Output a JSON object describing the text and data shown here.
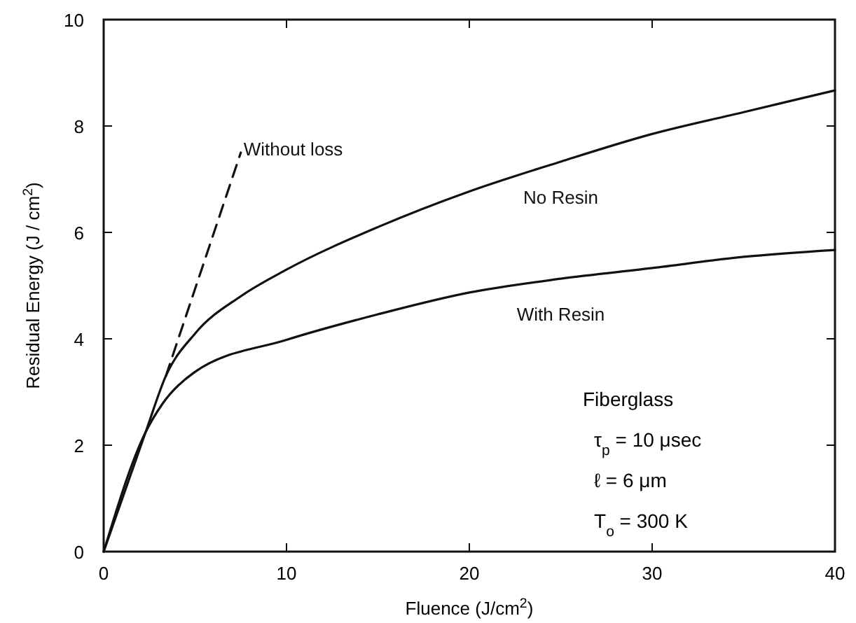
{
  "chart_data": {
    "type": "line",
    "xlabel": "Fluence (J/cm$^{2}$)",
    "ylabel": "Residual Energy (J / cm$^{2}$)",
    "xlim": [
      0,
      40
    ],
    "ylim": [
      0,
      10
    ],
    "xticks": [
      0,
      10,
      20,
      30,
      40
    ],
    "yticks": [
      0,
      2,
      4,
      6,
      8,
      10
    ],
    "grid": false,
    "legend": false,
    "marker": "none",
    "series": [
      {
        "name": "No Resin",
        "color": "#111111",
        "line_style": "solid",
        "x": [
          0,
          2.3,
          3.4,
          5,
          7.5,
          10,
          15,
          20,
          25,
          30,
          35,
          40
        ],
        "values": [
          0,
          2.25,
          3.3,
          4.1,
          4.8,
          5.3,
          6.1,
          6.77,
          7.33,
          7.85,
          8.26,
          8.67
        ]
      },
      {
        "name": "With Resin",
        "color": "#111111",
        "line_style": "solid",
        "x": [
          0,
          2.3,
          3.2,
          5,
          10,
          15,
          20,
          25,
          30,
          35,
          40
        ],
        "values": [
          0,
          2.25,
          2.77,
          3.38,
          3.98,
          4.46,
          4.87,
          5.13,
          5.33,
          5.54,
          5.67
        ]
      },
      {
        "name": "Without loss",
        "color": "#111111",
        "line_style": "dashed",
        "x": [
          3.4,
          7.5
        ],
        "values": [
          3.3,
          7.5
        ]
      }
    ],
    "annotations": [
      "Fiberglass",
      "τ$_{p}$ = 10 μsec",
      "ℓ = 6 μm",
      "T$_{o}$ = 300 K"
    ]
  }
}
